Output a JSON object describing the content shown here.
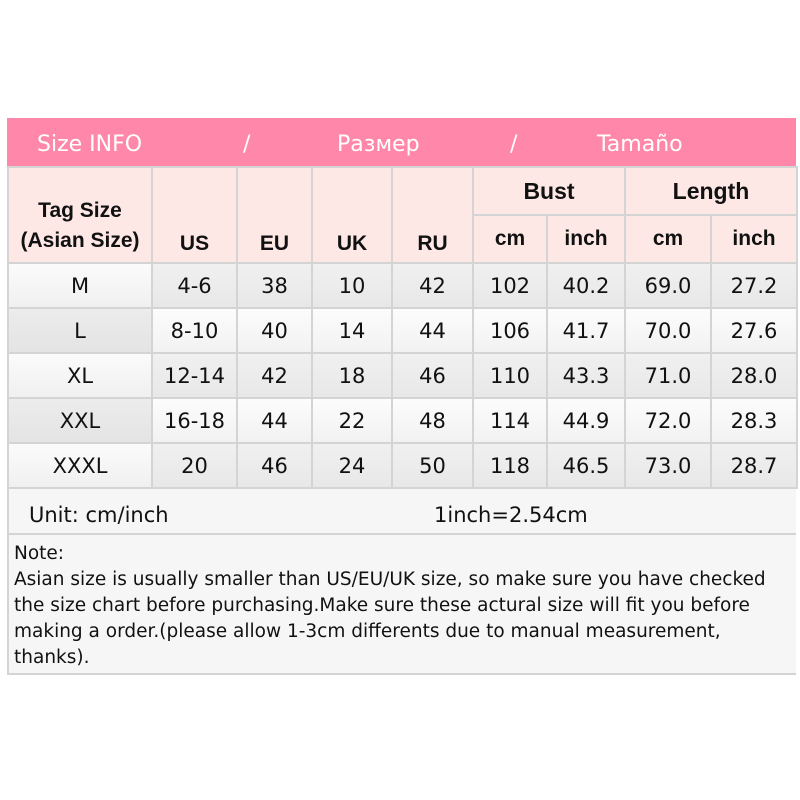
{
  "banner": {
    "left": "Size INFO",
    "sep1": "/",
    "middle": "Размер",
    "sep2": "/",
    "right": "Tamaño"
  },
  "colors": {
    "banner": "#ff88aa",
    "header": "#fde8e6"
  },
  "headers": {
    "tag_size": "Tag Size (Asian Size)",
    "us": "US",
    "eu": "EU",
    "uk": "UK",
    "ru": "RU",
    "bust": "Bust",
    "length": "Length",
    "bust_cm": "cm",
    "bust_inch": "inch",
    "length_cm": "cm",
    "length_inch": "inch"
  },
  "rows": [
    [
      "M",
      "4-6",
      "38",
      "10",
      "42",
      "102",
      "40.2",
      "69.0",
      "27.2"
    ],
    [
      "L",
      "8-10",
      "40",
      "14",
      "44",
      "106",
      "41.7",
      "70.0",
      "27.6"
    ],
    [
      "XL",
      "12-14",
      "42",
      "18",
      "46",
      "110",
      "43.3",
      "71.0",
      "28.0"
    ],
    [
      "XXL",
      "16-18",
      "44",
      "22",
      "48",
      "114",
      "44.9",
      "72.0",
      "28.3"
    ],
    [
      "XXXL",
      "20",
      "46",
      "24",
      "50",
      "118",
      "46.5",
      "73.0",
      "28.7"
    ]
  ],
  "unit": {
    "label": "Unit: cm/inch",
    "conversion": "1inch=2.54cm"
  },
  "note": {
    "title": "Note:",
    "text": "Asian size is usually smaller than US/EU/UK size, so make sure you have checked the size chart before purchasing.Make sure these actural size will fit you before making a order.(please allow 1-3cm differents due to manual measurement, thanks)."
  }
}
